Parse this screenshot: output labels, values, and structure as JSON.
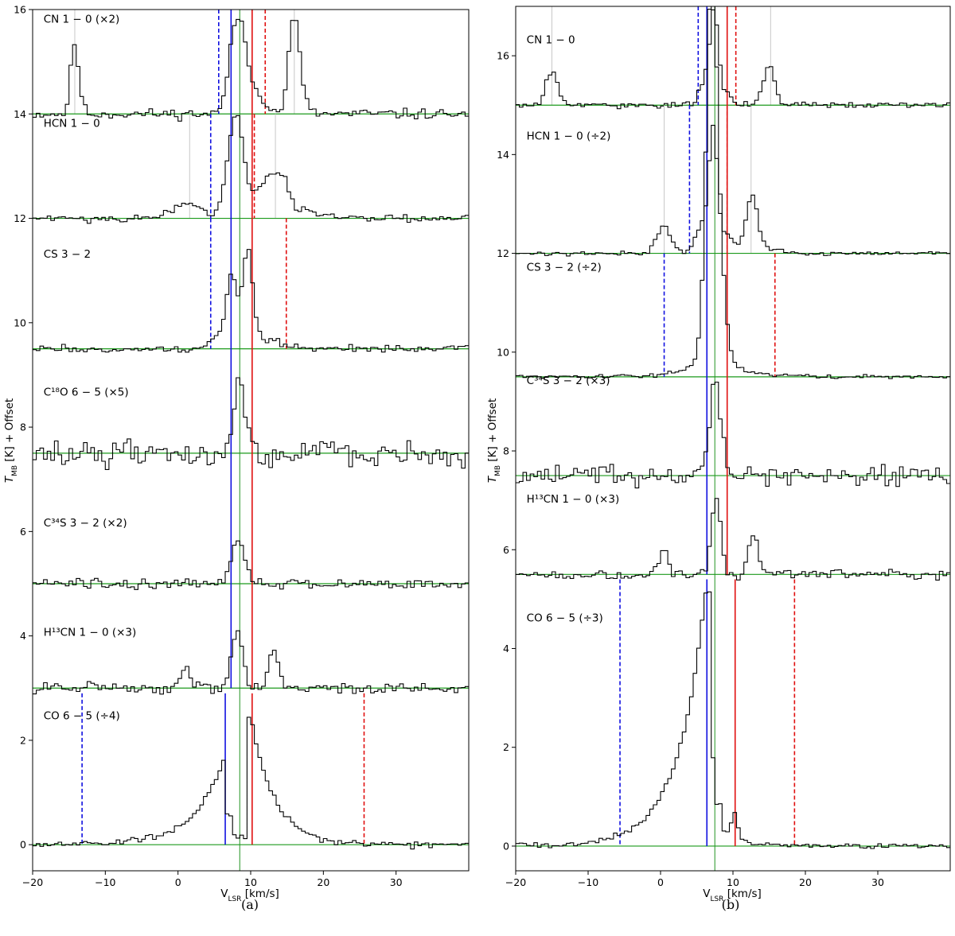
{
  "colors": {
    "spectrum": "#000000",
    "baseline": "#1b9a1b",
    "systemic": "#45a545",
    "blue": "#1010e0",
    "red": "#e01010",
    "hfs": "#c8c8c8"
  },
  "panels": [
    {
      "caption": "(a)",
      "xlabel": "V",
      "xlabel_sub": "LSR",
      "xlabel_unit": " [km/s]",
      "ylabel": "T",
      "ylabel_sub": "MB",
      "ylabel_unit": " [K] + Offset"
    },
    {
      "caption": "(b)",
      "xlabel": "V",
      "xlabel_sub": "LSR",
      "xlabel_unit": " [km/s]",
      "ylabel": "T",
      "ylabel_sub": "MB",
      "ylabel_unit": " [K] + Offset"
    }
  ],
  "chart_data": [
    {
      "type": "line",
      "panel": "(a)",
      "xlim": [
        -20,
        40
      ],
      "ylim": [
        -0.5,
        16
      ],
      "xticks": [
        -20,
        -10,
        0,
        10,
        20,
        30
      ],
      "yticks": [
        0,
        2,
        4,
        6,
        8,
        10,
        12,
        14,
        16
      ],
      "xlabel": "V_LSR [km/s]",
      "ylabel": "T_MB [K] + Offset",
      "grid": false,
      "systemic_velocity": 8.5,
      "series": [
        {
          "label": "CN 1 − 0 (×2)",
          "offset": 14,
          "noise": 0.05,
          "peaks": [
            [
              -14.3,
              1.1,
              0.5
            ],
            [
              -13.8,
              0.35,
              0.6
            ],
            [
              7.4,
              0.9,
              0.8
            ],
            [
              8.6,
              1.4,
              0.8
            ],
            [
              10.5,
              0.5,
              1.2
            ],
            [
              15.8,
              1.3,
              0.7
            ],
            [
              16.5,
              0.7,
              0.8
            ]
          ],
          "blue_solid": 7.3,
          "red_solid": 10.2,
          "blue_dashed": 5.6,
          "red_dashed": 12.0,
          "hfs_lines": [
            -14.2,
            16.0
          ],
          "label_pos": {
            "vel": -18.5,
            "t": 15.75
          }
        },
        {
          "label": "HCN 1 − 0",
          "offset": 12,
          "noise": 0.04,
          "peaks": [
            [
              1.0,
              0.3,
              2.0
            ],
            [
              7.2,
              0.9,
              1.0
            ],
            [
              8.2,
              1.3,
              0.8
            ],
            [
              10.0,
              0.4,
              1.2
            ],
            [
              12.5,
              0.6,
              1.2
            ],
            [
              14.3,
              0.55,
              0.9
            ],
            [
              16.5,
              0.15,
              3.0
            ]
          ],
          "blue_solid": 7.3,
          "red_solid": 10.2,
          "blue_dashed": 4.5,
          "red_dashed": 10.5,
          "hfs_lines": [
            1.6,
            13.4
          ],
          "label_pos": {
            "vel": -18.5,
            "t": 13.75
          }
        },
        {
          "label": "CS 3 − 2",
          "offset": 9.5,
          "noise": 0.035,
          "peaks": [
            [
              7.4,
              1.35,
              0.75
            ],
            [
              9.6,
              1.8,
              0.7
            ],
            [
              12.0,
              0.2,
              1.8
            ],
            [
              5.5,
              0.2,
              1.2
            ]
          ],
          "blue_solid": 7.3,
          "red_solid": 10.2,
          "blue_dashed": 4.5,
          "red_dashed": 14.9,
          "hfs_lines": [],
          "label_pos": {
            "vel": -18.5,
            "t": 11.25
          }
        },
        {
          "label": "C¹⁸O 6 − 5 (×5)",
          "offset": 7.5,
          "noise": 0.12,
          "peaks": [
            [
              8.6,
              1.5,
              0.7
            ]
          ],
          "blue_solid": 7.3,
          "red_solid": 10.2,
          "hfs_lines": [],
          "label_pos": {
            "vel": -18.5,
            "t": 8.6
          }
        },
        {
          "label": "C³⁴S 3 − 2 (×2)",
          "offset": 5,
          "noise": 0.05,
          "peaks": [
            [
              8.3,
              0.9,
              0.9
            ]
          ],
          "blue_solid": 7.3,
          "red_solid": 10.2,
          "hfs_lines": [],
          "label_pos": {
            "vel": -18.5,
            "t": 6.1
          }
        },
        {
          "label": "H¹³CN 1 − 0 (×3)",
          "offset": 3,
          "noise": 0.05,
          "peaks": [
            [
              0.9,
              0.45,
              0.6
            ],
            [
              7.8,
              0.9,
              0.6
            ],
            [
              8.8,
              0.5,
              0.6
            ],
            [
              13.2,
              0.75,
              0.7
            ]
          ],
          "blue_solid": 7.3,
          "red_solid": 10.2,
          "hfs_lines": [],
          "label_pos": {
            "vel": -18.5,
            "t": 4.0
          }
        },
        {
          "label": "CO 6 − 5 (÷4)",
          "offset": 0,
          "noise": 0.03,
          "profile": "co",
          "blue_solid": 6.5,
          "red_solid": 10.2,
          "blue_dashed": -13.2,
          "red_dashed": 25.6,
          "blue_solid_top": 2.9,
          "red_solid_top": 2.9,
          "blue_dashed_top": 2.9,
          "red_dashed_top": 2.9,
          "hfs_lines": [],
          "label_pos": {
            "vel": -18.5,
            "t": 2.4
          }
        }
      ]
    },
    {
      "type": "line",
      "panel": "(b)",
      "xlim": [
        -20,
        40
      ],
      "ylim": [
        -0.5,
        17
      ],
      "xticks": [
        -20,
        -10,
        0,
        10,
        20,
        30
      ],
      "yticks": [
        0,
        2,
        4,
        6,
        8,
        10,
        12,
        14,
        16
      ],
      "xlabel": "V_LSR [km/s]",
      "ylabel": "T_MB [K] + Offset",
      "grid": false,
      "systemic_velocity": 7.5,
      "series": [
        {
          "label": "CN 1 − 0",
          "offset": 15,
          "noise": 0.03,
          "peaks": [
            [
              -15.0,
              0.7,
              0.8
            ],
            [
              6.0,
              0.45,
              0.7
            ],
            [
              7.4,
              1.8,
              0.6
            ],
            [
              9.0,
              0.25,
              0.8
            ],
            [
              15.0,
              0.8,
              0.8
            ]
          ],
          "blue_solid": 6.4,
          "red_solid": 9.2,
          "blue_dashed": 5.2,
          "red_dashed": 10.4,
          "hfs_lines": [
            -15.0,
            15.2
          ],
          "label_pos": {
            "vel": -18.5,
            "t": 16.25
          }
        },
        {
          "label": "HCN 1 − 0 (÷2)",
          "offset": 12,
          "noise": 0.02,
          "peaks": [
            [
              0.5,
              0.55,
              1.0
            ],
            [
              6.0,
              0.6,
              1.0
            ],
            [
              7.3,
              2.3,
              0.55
            ],
            [
              9.2,
              0.35,
              1.0
            ],
            [
              12.6,
              1.1,
              0.8
            ],
            [
              14.5,
              0.1,
              2.0
            ]
          ],
          "blue_solid": 6.4,
          "red_solid": 9.2,
          "blue_dashed": 4.0,
          "red_dashed": 9.2,
          "hfs_lines": [
            0.5,
            12.5
          ],
          "label_pos": {
            "vel": -18.5,
            "t": 14.3
          }
        },
        {
          "label": "CS 3 − 2 (÷2)",
          "offset": 9.5,
          "noise": 0.02,
          "profile": "cs_b",
          "blue_solid": 6.4,
          "red_solid": 9.2,
          "blue_dashed": 0.5,
          "red_dashed": 15.8,
          "hfs_lines": [],
          "label_pos": {
            "vel": -18.5,
            "t": 11.65
          }
        },
        {
          "label": "C³⁴S 3 − 2 (×3)",
          "offset": 7.5,
          "noise": 0.1,
          "peaks": [
            [
              7.4,
              1.6,
              0.5
            ],
            [
              8.4,
              0.8,
              0.7
            ],
            [
              6.2,
              0.4,
              0.8
            ]
          ],
          "blue_solid": 6.4,
          "red_solid": 9.2,
          "hfs_lines": [],
          "label_pos": {
            "vel": -18.5,
            "t": 9.35
          }
        },
        {
          "label": "H¹³CN 1 − 0 (×3)",
          "offset": 5.5,
          "noise": 0.05,
          "peaks": [
            [
              0.5,
              0.45,
              0.6
            ],
            [
              7.3,
              0.9,
              0.5
            ],
            [
              8.0,
              1.1,
              0.5
            ],
            [
              12.8,
              0.8,
              0.7
            ]
          ],
          "blue_solid": 6.4,
          "red_solid": 9.2,
          "hfs_lines": [],
          "label_pos": {
            "vel": -18.5,
            "t": 6.95
          }
        },
        {
          "label": "CO 6 − 5 (÷3)",
          "offset": 0,
          "noise": 0.03,
          "profile": "co_b",
          "blue_solid": 6.4,
          "red_solid": 10.3,
          "blue_dashed": -5.6,
          "red_dashed": 18.5,
          "blue_solid_top": 5.4,
          "red_solid_top": 5.4,
          "blue_dashed_top": 5.4,
          "red_dashed_top": 5.4,
          "hfs_lines": [],
          "label_pos": {
            "vel": -18.5,
            "t": 4.55
          }
        }
      ]
    }
  ]
}
